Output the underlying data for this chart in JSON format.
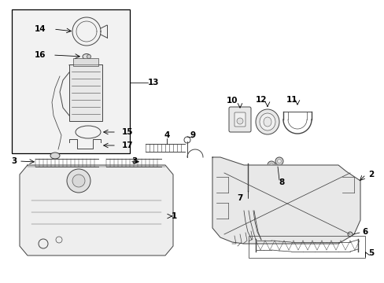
{
  "white": "#ffffff",
  "black": "#000000",
  "dkgray": "#333333",
  "ltgray": "#cccccc",
  "midgray": "#888888",
  "figsize": [
    4.89,
    3.6
  ],
  "dpi": 100,
  "xlim": [
    0,
    489
  ],
  "ylim": [
    0,
    360
  ]
}
